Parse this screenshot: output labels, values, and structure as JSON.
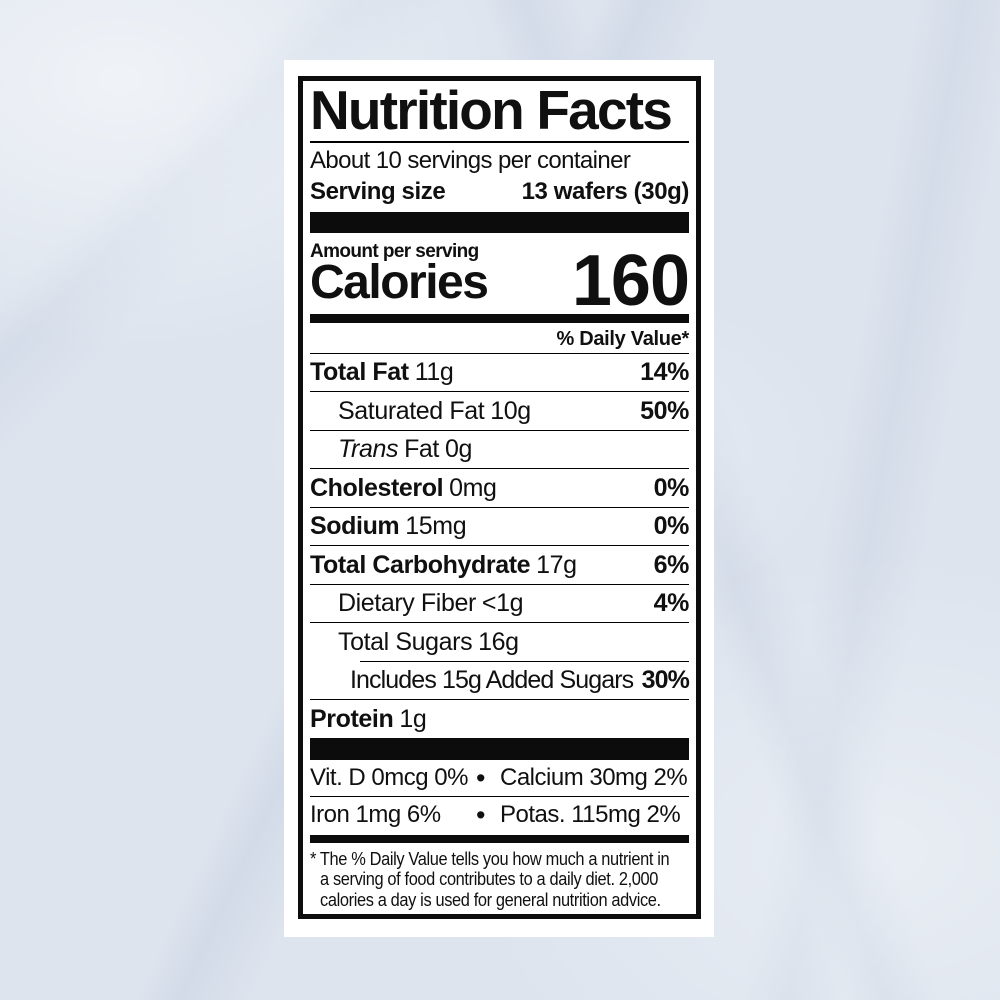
{
  "page": {
    "background_color": "#dde4ee",
    "card_color": "#ffffff"
  },
  "label": {
    "title": "Nutrition Facts",
    "servings_per_container": "About 10 servings per container",
    "serving_size": {
      "label": "Serving size",
      "value": "13 wafers (30g)"
    },
    "amount_per_serving": "Amount per serving",
    "calories": {
      "label": "Calories",
      "value": "160"
    },
    "daily_value_header": "% Daily Value*",
    "nutrients": [
      {
        "name": "Total Fat",
        "amount": "11g",
        "dv": "14%"
      },
      {
        "name": "Saturated Fat",
        "amount": "10g",
        "dv": "50%"
      },
      {
        "name_italic": "Trans",
        "name": "Fat",
        "amount": "0g",
        "dv": ""
      },
      {
        "name": "Cholesterol",
        "amount": "0mg",
        "dv": "0%"
      },
      {
        "name": "Sodium",
        "amount": "15mg",
        "dv": "0%"
      },
      {
        "name": "Total Carbohydrate",
        "amount": "17g",
        "dv": "6%"
      },
      {
        "name": "Dietary Fiber",
        "amount": "<1g",
        "dv": "4%"
      },
      {
        "name": "Total Sugars",
        "amount": "16g",
        "dv": ""
      },
      {
        "name": "Includes 15g Added Sugars",
        "amount": "",
        "dv": "30%"
      },
      {
        "name": "Protein",
        "amount": "1g",
        "dv": ""
      }
    ],
    "micronutrients": [
      {
        "left": "Vit. D 0mcg 0%",
        "bullet": "•",
        "right": "Calcium 30mg 2%"
      },
      {
        "left": "Iron 1mg 6%",
        "bullet": "•",
        "right": "Potas. 115mg 2%"
      }
    ],
    "footnote_lines": [
      "* The % Daily Value tells you how much a nutrient in",
      "a serving of food contributes to a daily diet. 2,000",
      "calories a day is used for general nutrition advice."
    ]
  }
}
